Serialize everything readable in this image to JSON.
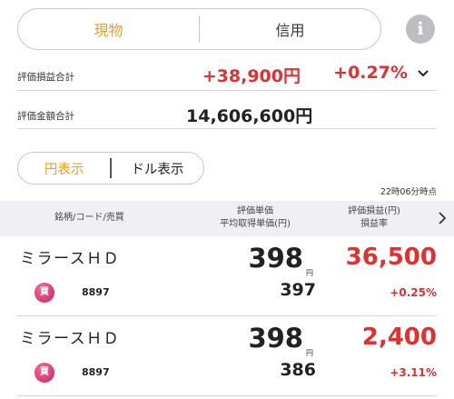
{
  "asset_type_toggle": {
    "options": [
      "現物",
      "信用"
    ],
    "selected": "現物"
  },
  "info_button": {
    "label": "i",
    "icon": "info-icon"
  },
  "summary": {
    "unrealized_pl_label": "評価損益合計",
    "unrealized_pl_value": "+38,900円",
    "unrealized_pl_rate": "+0.27%",
    "expand_icon": "chevron-down-icon",
    "valuation_total_label": "評価金額合計",
    "valuation_total_value": "14,606,600円"
  },
  "currency_toggle": {
    "options": [
      "円表示",
      "ドル表示"
    ],
    "selected": "円表示"
  },
  "updated_time": "22時06分時点",
  "table_header": {
    "col1": "銘柄/コード/売買",
    "col2_line1": "評価単価",
    "col2_line2": "平均取得単価(円)",
    "col3_line1": "評価損益(円)",
    "col3_line2": "損益率",
    "next_icon": "chevron-right-icon"
  },
  "holdings": [
    {
      "name": "ミラースＨＤ",
      "side": "買",
      "code": "8897",
      "price": "398",
      "price_unit": "円",
      "avg_cost": "397",
      "pl": "36,500",
      "pl_rate": "+0.25%"
    },
    {
      "name": "ミラースＨＤ",
      "side": "買",
      "code": "8897",
      "price": "398",
      "price_unit": "円",
      "avg_cost": "386",
      "pl": "2,400",
      "pl_rate": "+3.11%"
    }
  ],
  "colors": {
    "accent": "#f0a020",
    "positive": "#e03030",
    "buy_badge": "#d81e63",
    "header_bg": "#efeff4"
  }
}
